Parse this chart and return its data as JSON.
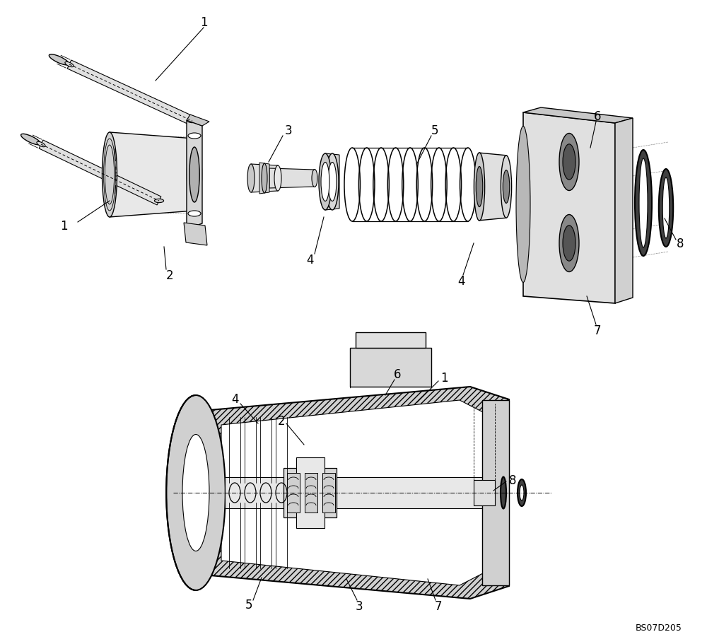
{
  "figure_width": 10.0,
  "figure_height": 9.12,
  "dpi": 100,
  "bg": "#ffffff",
  "lc": "#000000",
  "watermark": "BS07D205",
  "gray_light": "#e8e8e8",
  "gray_mid": "#d0d0d0",
  "gray_dark": "#a0a0a0",
  "hatch_color": "#555555"
}
